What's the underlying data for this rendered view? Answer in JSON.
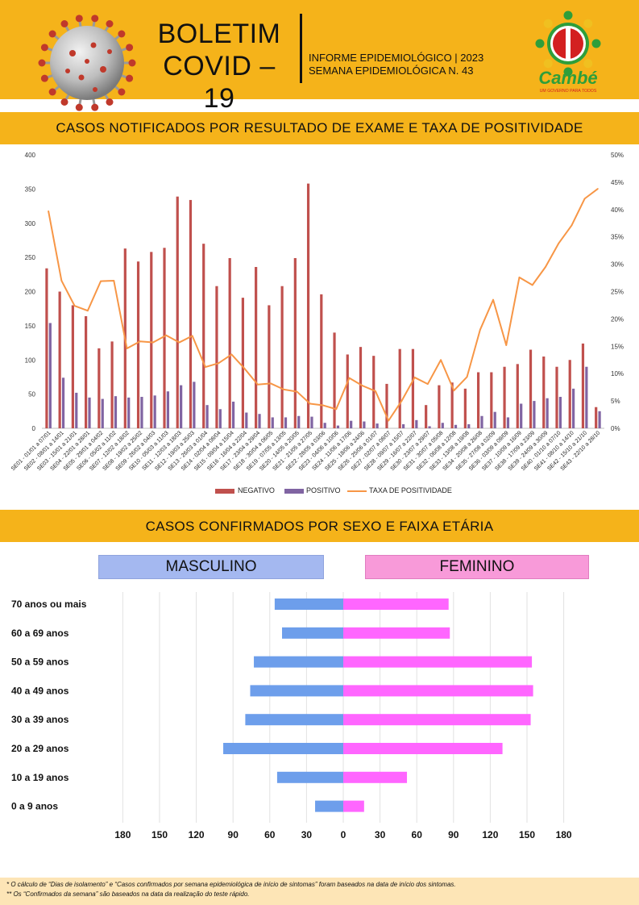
{
  "header": {
    "title_line1": "BOLETIM",
    "title_line2": "COVID – 19",
    "informe_line1": "INFORME EPIDEMIOLÓGICO | 2023",
    "informe_line2": "SEMANA EPIDEMIOLÓGICA  N. 43",
    "logo_text": "Cambé",
    "logo_tagline": "UM GOVERNO PARA TODOS"
  },
  "section1": {
    "title": "CASOS NOTIFICADOS POR RESULTADO DE EXAME E TAXA DE POSITIVIDADE"
  },
  "section2": {
    "title": "CASOS CONFIRMADOS POR SEXO E FAIXA ETÁRIA",
    "male_label": "MASCULINO",
    "female_label": "FEMININO"
  },
  "colors": {
    "header_bg": "#f5b31a",
    "negativo": "#c0504d",
    "positivo": "#8064a2",
    "taxa": "#f79646",
    "masculino": "#6d9eeb",
    "feminino": "#ff66ff"
  },
  "chart_data": [
    {
      "type": "bar",
      "title": "",
      "categories": [
        "SE01 - 01/01 a 07/01",
        "SE02 - 08/01 a 14/01",
        "SE03 - 15/01 a 21/01",
        "SE04 - 22/01 a 28/01",
        "SE05 - 29/01 a 04/02",
        "SE06 - 05/02 a 11/02",
        "SE07 - 12/02 a 18/02",
        "SE08 - 19/02 a 25/02",
        "SE09 - 26/02 a 04/03",
        "SE10 - 05/03 a 11/03",
        "SE11 - 12/03 a 18/03",
        "SE12 - 19/03 a 25/03",
        "SE13 - 26/03 a 01/04",
        "SE14 - 02/04 a 08/04",
        "SE15 - 09/04 a 15/04",
        "SE16 - 16/04 a 22/04",
        "SE17 - 23/04 a 29/04",
        "SE18 - 30/04 a 06/05",
        "SE19 - 07/05 a 13/05",
        "SE20 - 14/05 a 20/05",
        "SE21 - 21/05 a 27/05",
        "SE22 - 28/05 a 03/06",
        "SE23 - 04/06 a 10/06",
        "SE24 - 11/06 a 17/06",
        "SE25 - 18/06 a 24/06",
        "SE26 - 25/06 a 01/07",
        "SE27 - 02/07 a 08/07",
        "SE28 - 09/07 a 15/07",
        "SE29 - 16/07 a 22/07",
        "SE30 - 23/07 a 29/07",
        "SE31 - 30/07 a 05/08",
        "SE32 - 06/08 a 12/08",
        "SE33 - 13/08 a 19/08",
        "SE34 - 20/08 a 26/08",
        "SE35 - 27/08 a 02/09",
        "SE36 - 03/09 a 09/09",
        "SE37 - 10/09 a 16/09",
        "SE38 - 17/09 a 23/09",
        "SE39 - 24/09 a 30/09",
        "SE40 - 01/10 a 07/10",
        "SE41 - 08/10 a 14/10",
        "SE42 - 15/10 a 21/10",
        "SE43 - 22/10 a 28/10"
      ],
      "series": [
        {
          "name": "NEGATIVO",
          "type": "bar",
          "axis": "left",
          "values": [
            234,
            200,
            180,
            164,
            117,
            127,
            263,
            244,
            258,
            264,
            339,
            334,
            270,
            208,
            249,
            191,
            236,
            180,
            208,
            249,
            358,
            196,
            140,
            108,
            119,
            106,
            65,
            116,
            116,
            34,
            63,
            67,
            58,
            82,
            82,
            90,
            94,
            115,
            105,
            90,
            100,
            124,
            31
          ]
        },
        {
          "name": "POSITIVO",
          "type": "bar",
          "axis": "left",
          "values": [
            154,
            74,
            52,
            45,
            43,
            47,
            45,
            46,
            48,
            54,
            63,
            68,
            34,
            28,
            39,
            23,
            21,
            16,
            16,
            18,
            17,
            8,
            4,
            11,
            10,
            7,
            0,
            6,
            12,
            3,
            8,
            5,
            6,
            18,
            24,
            16,
            36,
            40,
            44,
            46,
            58,
            90,
            25
          ]
        },
        {
          "name": "TAXA DE POSITIVIDADE",
          "type": "line",
          "axis": "right",
          "unit": "%",
          "values": [
            39.7,
            27,
            22.4,
            21.5,
            26.9,
            27,
            14.6,
            15.9,
            15.7,
            17,
            15.7,
            16.9,
            11.2,
            11.9,
            13.5,
            10.9,
            8,
            8.2,
            7.1,
            6.7,
            4.5,
            4.2,
            3.5,
            9.2,
            7.8,
            6.8,
            1.4,
            5,
            9.3,
            8.1,
            12.5,
            6.9,
            9.4,
            18,
            23.5,
            15.2,
            27.6,
            26.2,
            29.5,
            33.8,
            37.1,
            42,
            43.8
          ]
        }
      ],
      "ylim_left": [
        0,
        400
      ],
      "yticks_left": [
        0,
        50,
        100,
        150,
        200,
        250,
        300,
        350,
        400
      ],
      "ylim_right": [
        0,
        50
      ],
      "yticks_right": [
        "0%",
        "5%",
        "10%",
        "15%",
        "20%",
        "25%",
        "30%",
        "35%",
        "40%",
        "45%",
        "50%"
      ],
      "legend_position": "bottom",
      "grid": false
    },
    {
      "type": "bar",
      "orientation": "horizontal",
      "title": "",
      "categories": [
        "70 anos ou mais",
        "60 a 69 anos",
        "50 a 59 anos",
        "40 a 49 anos",
        "30 a 39 anos",
        "20 a 29 anos",
        "10 a 19 anos",
        "0 a 9 anos"
      ],
      "series": [
        {
          "name": "MASCULINO",
          "values": [
            56,
            50,
            73,
            76,
            80,
            98,
            54,
            23
          ]
        },
        {
          "name": "FEMININO",
          "values": [
            86,
            87,
            154,
            155,
            153,
            130,
            52,
            17
          ]
        }
      ],
      "xlim": [
        -180,
        180
      ],
      "xticks": [
        "180",
        "150",
        "120",
        "90",
        "60",
        "30",
        "0",
        "30",
        "60",
        "90",
        "120",
        "150",
        "180"
      ],
      "grid": true
    }
  ],
  "footer": {
    "note1": "* O cálculo de “Dias de isolamento” e “Casos confirmados por semana epidemiológica de início de sintomas” foram baseados na data de início dos sintomas.",
    "note2": "** Os “Confirmados da semana” são baseados na data da realização do teste rápido."
  }
}
